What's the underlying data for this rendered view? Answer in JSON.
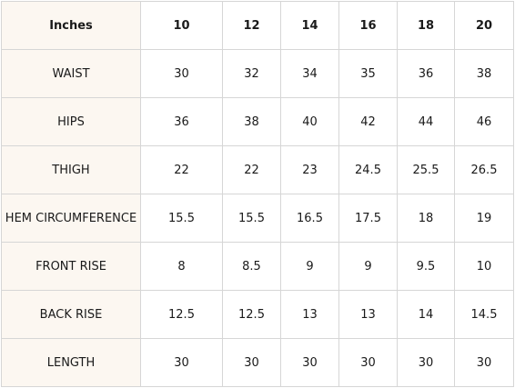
{
  "table": {
    "corner_label": "Inches",
    "sizes": [
      "10",
      "12",
      "14",
      "16",
      "18",
      "20"
    ],
    "rows": [
      {
        "label": "WAIST",
        "values": [
          "30",
          "32",
          "34",
          "35",
          "36",
          "38"
        ]
      },
      {
        "label": "HIPS",
        "values": [
          "36",
          "38",
          "40",
          "42",
          "44",
          "46"
        ]
      },
      {
        "label": "THIGH",
        "values": [
          "22",
          "22",
          "23",
          "24.5",
          "25.5",
          "26.5"
        ]
      },
      {
        "label": "HEM CIRCUMFERENCE",
        "values": [
          "15.5",
          "15.5",
          "16.5",
          "17.5",
          "18",
          "19"
        ]
      },
      {
        "label": "FRONT RISE",
        "values": [
          "8",
          "8.5",
          "9",
          "9",
          "9.5",
          "10"
        ]
      },
      {
        "label": "BACK RISE",
        "values": [
          "12.5",
          "12.5",
          "13",
          "13",
          "14",
          "14.5"
        ]
      },
      {
        "label": "LENGTH",
        "values": [
          "30",
          "30",
          "30",
          "30",
          "30",
          "30"
        ]
      }
    ]
  },
  "colors": {
    "label_background": "#fcf7f1",
    "border": "#d6d6d6",
    "text": "#1a1a1a"
  }
}
